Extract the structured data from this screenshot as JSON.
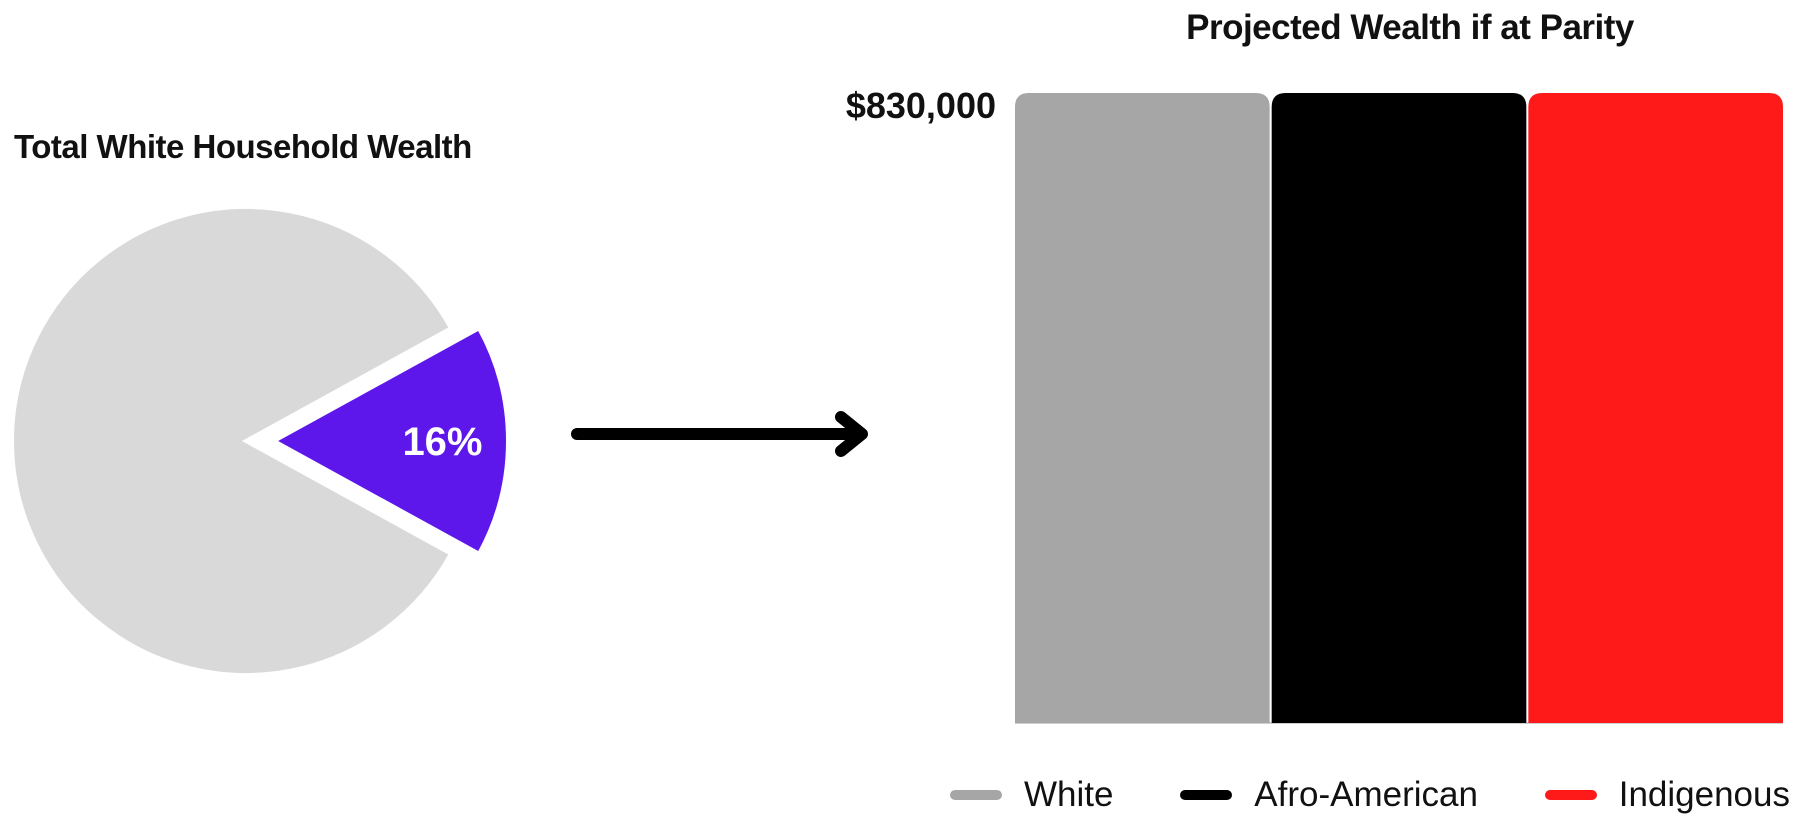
{
  "chart_data": [
    {
      "type": "pie",
      "title": "Total White Household Wealth",
      "slices": [
        {
          "label": "16%",
          "value": 16,
          "color": "#5E17EB",
          "exploded": true
        },
        {
          "label": "",
          "value": 84,
          "color": "#D9D9D9",
          "exploded": false
        }
      ]
    },
    {
      "type": "bar",
      "title": "Projected Wealth if at Parity",
      "categories": [
        "White",
        "Afro-American",
        "Indigenous"
      ],
      "values": [
        830000,
        830000,
        830000
      ],
      "colors": [
        "#A6A6A6",
        "#000000",
        "#FF1A1A"
      ],
      "value_label": "$830,000",
      "ylim": [
        0,
        830000
      ],
      "grid": false,
      "legend_position": "bottom"
    }
  ],
  "arrow": {
    "icon": "right-arrow-icon"
  }
}
